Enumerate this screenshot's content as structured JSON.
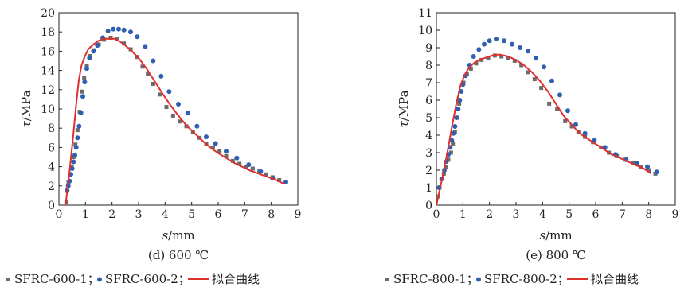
{
  "colors": {
    "s1": "#6b6b6b",
    "s2": "#2e5fb0",
    "fit": "#e0302e"
  },
  "chart_data": [
    {
      "type": "scatter",
      "caption": "(d) 600 ℃",
      "xlabel_var": "s",
      "xlabel_unit": "/mm",
      "ylabel_var": "τ",
      "ylabel_unit": "/MPa",
      "xlim": [
        0,
        9
      ],
      "ylim": [
        0,
        20
      ],
      "xticks": [
        "0",
        "1",
        "2",
        "3",
        "4",
        "5",
        "6",
        "7",
        "8",
        "9"
      ],
      "yticks": [
        "0",
        "2",
        "4",
        "6",
        "8",
        "10",
        "12",
        "14",
        "16",
        "18",
        "20"
      ],
      "legend": [
        "SFRC-600-1；",
        "SFRC-600-2；",
        "拟合曲线"
      ],
      "series": [
        {
          "name": "SFRC-600-1",
          "marker": "square",
          "color": "#6b6b6b",
          "x": [
            0.28,
            0.32,
            0.36,
            0.42,
            0.48,
            0.55,
            0.62,
            0.7,
            0.78,
            0.86,
            0.95,
            1.05,
            1.18,
            1.32,
            1.5,
            1.7,
            1.95,
            2.2,
            2.45,
            2.7,
            2.95,
            3.15,
            3.35,
            3.55,
            3.8,
            4.05,
            4.3,
            4.55,
            4.8,
            5.05,
            5.3,
            5.55,
            5.8,
            6.05,
            6.3,
            6.55,
            6.8,
            7.05,
            7.3,
            7.55,
            7.8,
            8.05,
            8.3
          ],
          "y": [
            0.3,
            1.5,
            2.4,
            3.2,
            4.0,
            5.0,
            6.3,
            7.8,
            9.7,
            11.8,
            13.2,
            14.5,
            15.5,
            16.1,
            16.7,
            17.2,
            17.4,
            17.3,
            16.8,
            16.2,
            15.4,
            14.4,
            13.6,
            12.6,
            11.5,
            10.2,
            9.3,
            8.7,
            8.2,
            7.6,
            7.0,
            6.4,
            6.0,
            5.6,
            5.1,
            4.6,
            4.3,
            4.0,
            3.8,
            3.5,
            3.2,
            2.9,
            2.6
          ]
        },
        {
          "name": "SFRC-600-2",
          "marker": "circle",
          "color": "#2e5fb0",
          "x": [
            0.3,
            0.35,
            0.4,
            0.45,
            0.5,
            0.55,
            0.6,
            0.65,
            0.7,
            0.76,
            0.83,
            0.9,
            0.97,
            1.05,
            1.15,
            1.3,
            1.45,
            1.65,
            1.85,
            2.05,
            2.25,
            2.45,
            2.7,
            2.95,
            3.25,
            3.55,
            3.85,
            4.15,
            4.5,
            4.85,
            5.2,
            5.55,
            5.9,
            6.3,
            6.7,
            7.15,
            7.6,
            8.05,
            8.55
          ],
          "y": [
            1.5,
            2.0,
            2.5,
            3.2,
            3.8,
            4.5,
            5.2,
            6.0,
            7.0,
            8.2,
            9.6,
            11.3,
            12.8,
            14.2,
            15.3,
            16.0,
            16.6,
            17.4,
            18.1,
            18.3,
            18.3,
            18.2,
            18.0,
            17.5,
            16.5,
            15.0,
            13.4,
            11.8,
            10.5,
            9.6,
            8.2,
            7.1,
            6.4,
            5.6,
            4.9,
            4.2,
            3.5,
            2.8,
            2.4
          ]
        },
        {
          "name": "拟合曲线",
          "marker": "line",
          "color": "#e0302e",
          "x": [
            0.25,
            0.4,
            0.55,
            0.65,
            0.75,
            0.85,
            0.95,
            1.1,
            1.3,
            1.5,
            1.7,
            1.9,
            2.1,
            2.3,
            2.5,
            2.75,
            3.0,
            3.3,
            3.6,
            3.9,
            4.2,
            4.5,
            4.8,
            5.1,
            5.4,
            5.7,
            6.0,
            6.3,
            6.6,
            6.9,
            7.2,
            7.5,
            7.8,
            8.1,
            8.5
          ],
          "y": [
            0.0,
            3.5,
            7.5,
            10.5,
            13.0,
            14.5,
            15.3,
            16.2,
            16.7,
            17.1,
            17.3,
            17.3,
            17.3,
            17.0,
            16.6,
            16.0,
            15.3,
            14.2,
            12.9,
            11.6,
            10.4,
            9.3,
            8.3,
            7.5,
            6.7,
            6.0,
            5.4,
            4.9,
            4.4,
            4.0,
            3.6,
            3.3,
            3.0,
            2.7,
            2.2
          ]
        }
      ]
    },
    {
      "type": "scatter",
      "caption": "(e) 800 ℃",
      "xlabel_var": "s",
      "xlabel_unit": "/mm",
      "ylabel_var": "τ",
      "ylabel_unit": "/MPa",
      "xlim": [
        0,
        9
      ],
      "ylim": [
        0,
        11
      ],
      "xticks": [
        "0",
        "1",
        "2",
        "3",
        "4",
        "5",
        "6",
        "7",
        "8",
        "9"
      ],
      "yticks": [
        "0",
        "1",
        "2",
        "3",
        "4",
        "5",
        "6",
        "7",
        "8",
        "9",
        "10",
        "11"
      ],
      "legend": [
        "SFRC-800-1；",
        "SFRC-800-2；",
        "拟合曲线"
      ],
      "series": [
        {
          "name": "SFRC-800-1",
          "marker": "square",
          "color": "#6b6b6b",
          "x": [
            0.05,
            0.12,
            0.2,
            0.28,
            0.36,
            0.45,
            0.55,
            0.62,
            0.7,
            0.78,
            0.86,
            0.94,
            1.02,
            1.15,
            1.3,
            1.5,
            1.7,
            1.95,
            2.2,
            2.45,
            2.7,
            2.95,
            3.2,
            3.45,
            3.7,
            3.95,
            4.25,
            4.55,
            4.85,
            5.1,
            5.35,
            5.6,
            5.9,
            6.2,
            6.5,
            6.8,
            7.1,
            7.4,
            7.7,
            8.0,
            8.25
          ],
          "y": [
            0.5,
            1.0,
            1.5,
            1.8,
            2.2,
            2.6,
            3.0,
            3.5,
            4.2,
            5.0,
            5.8,
            6.5,
            7.0,
            7.5,
            7.8,
            8.1,
            8.3,
            8.4,
            8.55,
            8.5,
            8.4,
            8.25,
            8.0,
            7.6,
            7.2,
            6.7,
            5.8,
            5.5,
            4.8,
            4.5,
            4.2,
            3.9,
            3.6,
            3.3,
            3.0,
            2.8,
            2.6,
            2.4,
            2.2,
            2.0,
            1.8
          ]
        },
        {
          "name": "SFRC-800-2",
          "marker": "circle",
          "color": "#2e5fb0",
          "x": [
            0.1,
            0.2,
            0.3,
            0.38,
            0.45,
            0.52,
            0.58,
            0.64,
            0.7,
            0.76,
            0.82,
            0.88,
            0.94,
            1.0,
            1.1,
            1.25,
            1.4,
            1.6,
            1.8,
            2.0,
            2.25,
            2.55,
            2.85,
            3.15,
            3.45,
            3.75,
            4.05,
            4.35,
            4.65,
            4.95,
            5.25,
            5.6,
            5.95,
            6.35,
            6.75,
            7.15,
            7.55,
            7.95,
            8.3
          ],
          "y": [
            1.0,
            1.5,
            2.0,
            2.5,
            2.9,
            3.3,
            3.7,
            4.1,
            4.5,
            5.0,
            5.5,
            6.0,
            6.5,
            6.9,
            7.4,
            8.0,
            8.5,
            8.9,
            9.2,
            9.4,
            9.5,
            9.4,
            9.2,
            9.0,
            8.8,
            8.4,
            7.9,
            7.1,
            6.3,
            5.4,
            4.6,
            4.1,
            3.7,
            3.3,
            2.9,
            2.6,
            2.4,
            2.2,
            1.9
          ]
        },
        {
          "name": "拟合曲线",
          "marker": "line",
          "color": "#e0302e",
          "x": [
            0.0,
            0.2,
            0.4,
            0.6,
            0.75,
            0.9,
            1.05,
            1.2,
            1.4,
            1.6,
            1.8,
            2.0,
            2.2,
            2.4,
            2.7,
            3.0,
            3.3,
            3.6,
            3.9,
            4.2,
            4.5,
            4.8,
            5.1,
            5.4,
            5.7,
            6.0,
            6.3,
            6.6,
            6.9,
            7.2,
            7.5,
            7.8,
            8.1
          ],
          "y": [
            0.0,
            1.4,
            2.9,
            4.6,
            5.8,
            6.8,
            7.4,
            7.8,
            8.1,
            8.3,
            8.4,
            8.5,
            8.6,
            8.6,
            8.5,
            8.3,
            8.0,
            7.6,
            7.1,
            6.5,
            5.8,
            5.1,
            4.6,
            4.1,
            3.8,
            3.5,
            3.2,
            2.9,
            2.7,
            2.5,
            2.3,
            2.1,
            1.8
          ]
        }
      ]
    }
  ]
}
